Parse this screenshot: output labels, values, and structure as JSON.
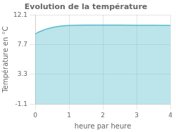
{
  "chart_data": {
    "type": "area",
    "title": "Evolution de la température",
    "x_label": "heure par heure",
    "y_label": "Température en °C",
    "x": [
      0,
      0.05,
      0.1,
      0.2,
      0.3,
      0.4,
      0.5,
      0.6,
      0.7,
      0.8,
      0.9,
      1.0,
      1.2,
      1.5,
      2.0,
      2.5,
      3.0,
      3.5,
      4.0
    ],
    "values": [
      9.3,
      9.4,
      9.55,
      9.75,
      9.95,
      10.1,
      10.22,
      10.32,
      10.4,
      10.46,
      10.5,
      10.53,
      10.56,
      10.58,
      10.58,
      10.58,
      10.56,
      10.55,
      10.53
    ],
    "color": "#55bbcc",
    "xlim": [
      0,
      4
    ],
    "xticks": [
      0,
      1,
      2,
      3,
      4
    ],
    "ylim": [
      -1.1,
      12.1
    ],
    "yticks": [
      -1.1,
      3.3,
      7.7,
      12.1
    ],
    "grid": true
  }
}
